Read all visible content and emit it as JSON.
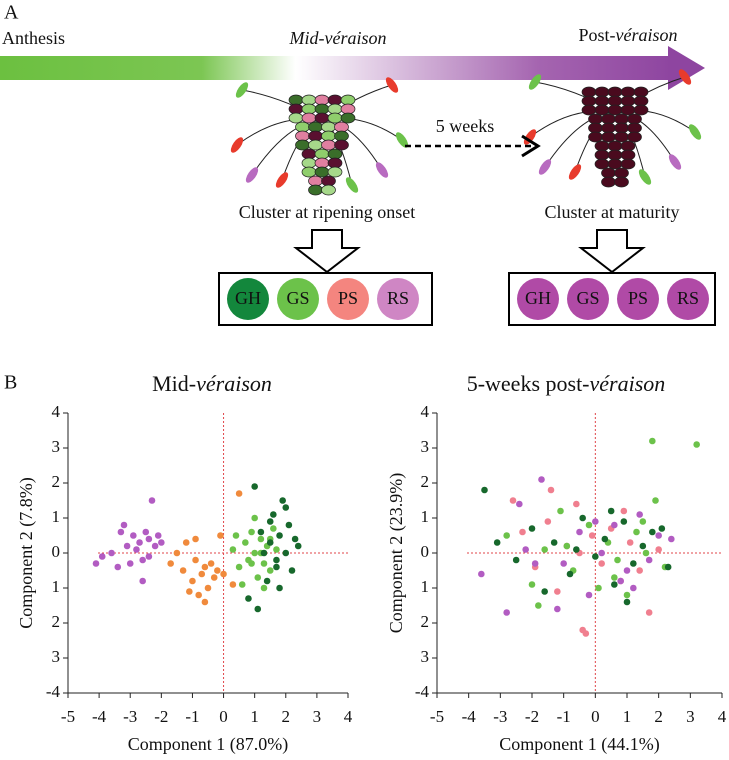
{
  "panel_labels": [
    "A",
    "B"
  ],
  "diagram": {
    "stages": {
      "start": "Anthesis",
      "mid": "Mid-véraison",
      "end": {
        "plain": "Post-",
        "italic": "véraison"
      }
    },
    "interval": "5 weeks",
    "clusters": [
      "Cluster at ripening onset",
      "Cluster at maturity"
    ],
    "samples": [
      [
        "GH",
        "GS",
        "PS",
        "RS"
      ],
      [
        "GH",
        "GS",
        "PS",
        "RS"
      ]
    ],
    "sample_colors": [
      [
        "#13873c",
        "#6cc24a",
        "#f4857f",
        "#cf86c4"
      ],
      [
        "#b04aa6",
        "#b04aa6",
        "#b04aa6",
        "#b04aa6"
      ]
    ]
  },
  "chart_data": [
    {
      "type": "scatter",
      "title": {
        "plain": "Mid-",
        "italic": "véraison"
      },
      "x_label": "Component 1 (87.0%)",
      "y_label": "Component 2 (7.8%)",
      "xlim": [
        -5,
        4
      ],
      "ylim": [
        -4,
        4
      ],
      "xticks": [
        -5,
        -4,
        -3,
        -2,
        -1,
        0,
        1,
        2,
        3,
        4
      ],
      "yticks": [
        4,
        3,
        2,
        1,
        0,
        {
          "value": -1,
          "label": "1"
        },
        {
          "value": -2,
          "label": "2"
        },
        {
          "value": -3,
          "label": "3"
        },
        -4
      ],
      "series": [
        {
          "color": "#b25cc2",
          "x": [
            -4.1,
            -3.9,
            -3.6,
            -3.4,
            -3.3,
            -3.1,
            -3.0,
            -2.9,
            -2.8,
            -2.7,
            -2.6,
            -2.5,
            -2.4,
            -2.3,
            -2.2,
            -2.1,
            -2.6,
            -3.2,
            -2.4,
            -2.0
          ],
          "values": [
            -0.3,
            -0.1,
            0.0,
            -0.4,
            0.6,
            0.2,
            -0.3,
            0.5,
            0.1,
            0.3,
            -0.2,
            0.6,
            0.4,
            1.5,
            0.2,
            0.5,
            -0.8,
            0.8,
            -0.1,
            0.3
          ]
        },
        {
          "color": "#f08a3c",
          "x": [
            -1.7,
            -1.5,
            -1.3,
            -1.2,
            -1.0,
            -0.9,
            -0.8,
            -0.7,
            -0.6,
            -0.5,
            -0.4,
            -0.3,
            -0.2,
            -0.1,
            0.0,
            -0.6,
            -0.9,
            0.3,
            0.5,
            -1.1
          ],
          "values": [
            -0.3,
            0.0,
            -0.5,
            0.3,
            -0.8,
            -0.2,
            -1.2,
            -0.6,
            -0.4,
            -1.0,
            -0.3,
            -0.7,
            -0.5,
            0.5,
            -0.6,
            -1.4,
            0.4,
            -0.9,
            1.7,
            -1.1
          ]
        },
        {
          "color": "#6cc24a",
          "x": [
            0.3,
            0.5,
            0.7,
            0.8,
            0.9,
            1.0,
            1.1,
            1.2,
            1.3,
            1.4,
            1.5,
            1.6,
            1.7,
            0.6,
            1.0,
            1.3,
            0.9,
            1.5,
            1.2,
            0.4
          ],
          "values": [
            0.1,
            -0.4,
            0.3,
            -0.2,
            0.6,
            0.0,
            -0.7,
            0.4,
            -0.3,
            0.2,
            -0.5,
            0.7,
            0.1,
            -0.9,
            1.0,
            -1.0,
            -0.3,
            0.4,
            0.0,
            0.5
          ]
        },
        {
          "color": "#17682c",
          "x": [
            0.8,
            1.0,
            1.2,
            1.4,
            1.5,
            1.6,
            1.7,
            1.8,
            1.9,
            2.0,
            2.1,
            2.2,
            2.3,
            1.1,
            1.8,
            2.0,
            1.5,
            1.7,
            2.4,
            1.3
          ],
          "values": [
            -1.3,
            1.9,
            0.6,
            -0.8,
            0.3,
            1.1,
            -0.2,
            0.5,
            1.5,
            0.0,
            0.8,
            -0.5,
            0.4,
            -1.6,
            -1.0,
            1.3,
            0.9,
            -0.4,
            0.2,
            0.0
          ]
        }
      ]
    },
    {
      "type": "scatter",
      "title": {
        "plain": "5-weeks post-",
        "italic": "véraison"
      },
      "x_label": "Component 1 (44.1%)",
      "y_label": "Component 2 (23.9%)",
      "xlim": [
        -5,
        4
      ],
      "ylim": [
        -4,
        4
      ],
      "xticks": [
        -5,
        -4,
        -3,
        -2,
        -1,
        0,
        1,
        2,
        3,
        4
      ],
      "yticks": [
        4,
        3,
        2,
        1,
        0,
        {
          "value": -1,
          "label": "1"
        },
        {
          "value": -2,
          "label": "2"
        },
        {
          "value": -3,
          "label": "3"
        },
        -4
      ],
      "series": [
        {
          "color": "#f07f8f",
          "x": [
            -2.6,
            -2.3,
            -1.9,
            -1.5,
            -1.2,
            -0.9,
            -0.6,
            -0.4,
            -0.1,
            0.2,
            0.5,
            0.8,
            1.1,
            1.4,
            1.7,
            -0.5,
            -0.3,
            0.9,
            -1.4,
            2.0
          ],
          "values": [
            1.5,
            0.6,
            -0.4,
            0.9,
            -1.1,
            0.2,
            1.4,
            -2.2,
            0.5,
            -0.3,
            0.7,
            -0.8,
            0.3,
            -0.5,
            -1.7,
            0.0,
            -2.3,
            1.2,
            1.8,
            0.1
          ]
        },
        {
          "color": "#6cc24a",
          "x": [
            -2.8,
            -2.0,
            -1.6,
            -1.1,
            -0.7,
            -0.2,
            0.1,
            0.4,
            0.7,
            1.0,
            1.3,
            1.6,
            1.9,
            2.2,
            3.2,
            1.8,
            -1.8,
            0.6,
            1.5,
            -0.9
          ],
          "values": [
            0.5,
            -0.9,
            0.1,
            1.2,
            -0.5,
            0.8,
            -1.0,
            0.3,
            -0.2,
            -1.2,
            0.6,
            0.0,
            1.5,
            -0.4,
            3.1,
            3.2,
            -1.5,
            -0.7,
            0.9,
            0.2
          ]
        },
        {
          "color": "#17682c",
          "x": [
            -3.5,
            -3.1,
            -2.5,
            -2.0,
            -1.3,
            -0.8,
            -0.4,
            0.0,
            0.3,
            0.6,
            0.9,
            1.2,
            1.5,
            1.8,
            2.3,
            -1.6,
            1.0,
            -0.6,
            0.5,
            2.1
          ],
          "values": [
            1.8,
            0.3,
            -0.2,
            0.7,
            0.3,
            -0.6,
            1.0,
            -0.1,
            0.4,
            -0.9,
            0.9,
            -0.3,
            0.2,
            0.6,
            -0.4,
            -1.1,
            -1.4,
            0.1,
            1.2,
            0.7
          ]
        },
        {
          "color": "#b25cc2",
          "x": [
            -3.6,
            -2.8,
            -2.2,
            -1.7,
            -1.0,
            -0.5,
            -0.2,
            0.2,
            0.6,
            1.0,
            1.4,
            1.7,
            2.0,
            2.4,
            -1.2,
            0.8,
            -2.4,
            0.0,
            1.2,
            -1.9
          ],
          "values": [
            -0.6,
            -1.7,
            0.1,
            2.1,
            -0.3,
            0.6,
            -1.2,
            0.0,
            0.8,
            -0.5,
            1.1,
            -0.2,
            0.5,
            0.4,
            -1.6,
            -0.8,
            1.4,
            0.9,
            -1.0,
            -0.3
          ]
        }
      ]
    }
  ]
}
